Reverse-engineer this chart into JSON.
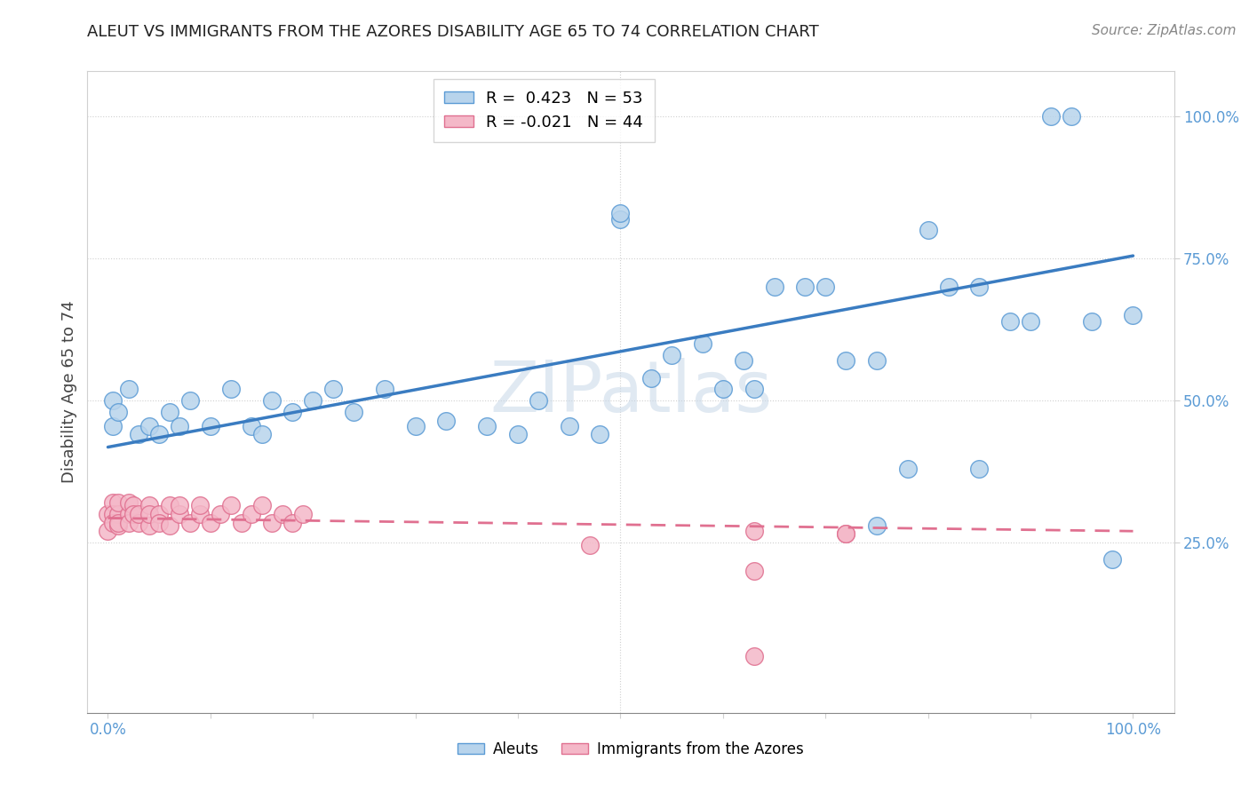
{
  "title": "ALEUT VS IMMIGRANTS FROM THE AZORES DISABILITY AGE 65 TO 74 CORRELATION CHART",
  "source_text": "Source: ZipAtlas.com",
  "ylabel": "Disability Age 65 to 74",
  "xlim": [
    -0.02,
    1.04
  ],
  "ylim": [
    -0.05,
    1.08
  ],
  "aleuts_R": 0.423,
  "aleuts_N": 53,
  "azores_R": -0.021,
  "azores_N": 44,
  "aleut_color": "#b8d4ec",
  "aleut_edge_color": "#5b9bd5",
  "azores_color": "#f4b8c8",
  "azores_edge_color": "#e07090",
  "aleut_line_color": "#3a7cc1",
  "azores_line_color": "#e07090",
  "background_color": "#ffffff",
  "grid_color": "#d0d0d0",
  "ytick_positions": [
    0.25,
    0.5,
    0.75,
    1.0
  ],
  "ytick_labels": [
    "25.0%",
    "50.0%",
    "75.0%",
    "100.0%"
  ],
  "xtick_labels_show": [
    "0.0%",
    "100.0%"
  ],
  "aleut_trend_start_y": 0.418,
  "aleut_trend_end_y": 0.755,
  "azores_trend_start_y": 0.293,
  "azores_trend_end_y": 0.27,
  "aleuts_x": [
    0.005,
    0.005,
    0.01,
    0.02,
    0.03,
    0.04,
    0.05,
    0.06,
    0.07,
    0.08,
    0.1,
    0.12,
    0.14,
    0.15,
    0.16,
    0.18,
    0.2,
    0.22,
    0.24,
    0.27,
    0.3,
    0.33,
    0.37,
    0.4,
    0.42,
    0.45,
    0.48,
    0.5,
    0.5,
    0.53,
    0.55,
    0.58,
    0.6,
    0.62,
    0.65,
    0.68,
    0.7,
    0.72,
    0.75,
    0.78,
    0.8,
    0.82,
    0.85,
    0.88,
    0.9,
    0.92,
    0.94,
    0.96,
    0.98,
    1.0,
    0.63,
    0.75,
    0.85
  ],
  "aleuts_y": [
    0.5,
    0.455,
    0.48,
    0.52,
    0.44,
    0.455,
    0.44,
    0.48,
    0.455,
    0.5,
    0.455,
    0.52,
    0.455,
    0.44,
    0.5,
    0.48,
    0.5,
    0.52,
    0.48,
    0.52,
    0.455,
    0.465,
    0.455,
    0.44,
    0.5,
    0.455,
    0.44,
    0.82,
    0.83,
    0.54,
    0.58,
    0.6,
    0.52,
    0.57,
    0.7,
    0.7,
    0.7,
    0.57,
    0.57,
    0.38,
    0.8,
    0.7,
    0.7,
    0.64,
    0.64,
    1.0,
    1.0,
    0.64,
    0.22,
    0.65,
    0.52,
    0.28,
    0.38
  ],
  "azores_x": [
    0.0,
    0.0,
    0.005,
    0.005,
    0.005,
    0.01,
    0.01,
    0.01,
    0.01,
    0.02,
    0.02,
    0.02,
    0.025,
    0.025,
    0.03,
    0.03,
    0.04,
    0.04,
    0.04,
    0.05,
    0.05,
    0.06,
    0.06,
    0.07,
    0.07,
    0.08,
    0.09,
    0.09,
    0.1,
    0.11,
    0.12,
    0.13,
    0.14,
    0.15,
    0.16,
    0.17,
    0.18,
    0.19,
    0.47,
    0.63,
    0.63,
    0.72,
    0.72,
    0.63
  ],
  "azores_y": [
    0.3,
    0.27,
    0.32,
    0.3,
    0.285,
    0.3,
    0.28,
    0.32,
    0.285,
    0.3,
    0.285,
    0.32,
    0.315,
    0.3,
    0.285,
    0.3,
    0.28,
    0.315,
    0.3,
    0.3,
    0.285,
    0.315,
    0.28,
    0.3,
    0.315,
    0.285,
    0.3,
    0.315,
    0.285,
    0.3,
    0.315,
    0.285,
    0.3,
    0.315,
    0.285,
    0.3,
    0.285,
    0.3,
    0.245,
    0.27,
    0.2,
    0.265,
    0.265,
    0.05
  ]
}
